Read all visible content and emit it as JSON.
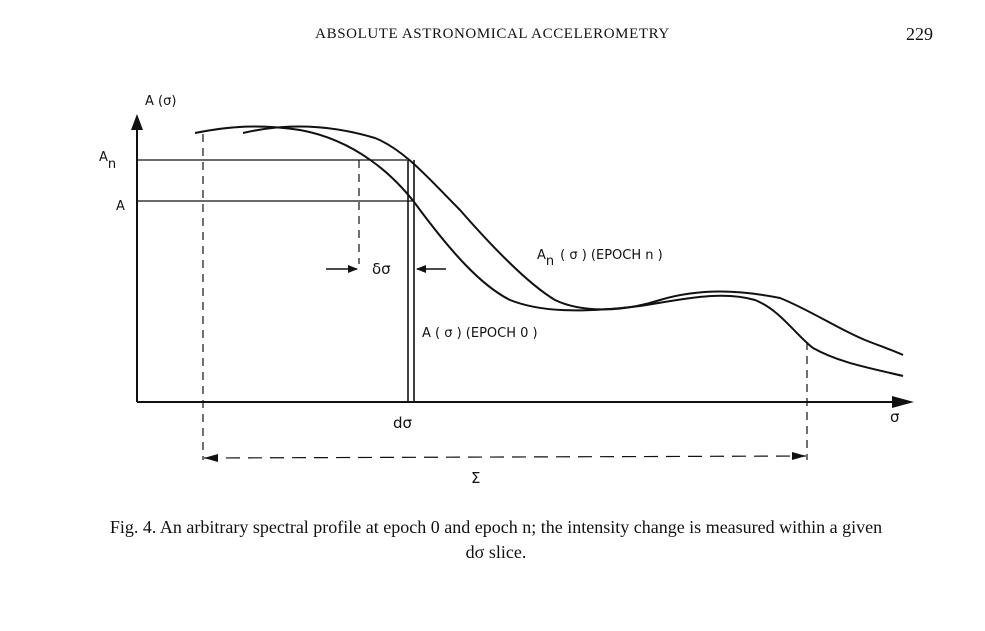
{
  "header": {
    "running_title": "ABSOLUTE ASTRONOMICAL ACCELEROMETRY",
    "page_number": "229"
  },
  "figure": {
    "y_axis_label": "A (σ)",
    "x_axis_label": "σ",
    "level_An": "A",
    "level_An_subscript": "n",
    "level_A": "A",
    "shift_label": "δσ",
    "slice_label": "dσ",
    "range_label": "Σ",
    "curve_n_label_prefix": "A",
    "curve_n_label_subscript": "n",
    "curve_n_label_suffix": "( σ ) (EPOCH n )",
    "curve_0_label": "A ( σ ) (EPOCH 0 )"
  },
  "caption": {
    "line1": "Fig. 4.    An arbitrary spectral profile at epoch 0 and epoch n; the intensity change is measured within a given",
    "line2": "dσ slice."
  }
}
